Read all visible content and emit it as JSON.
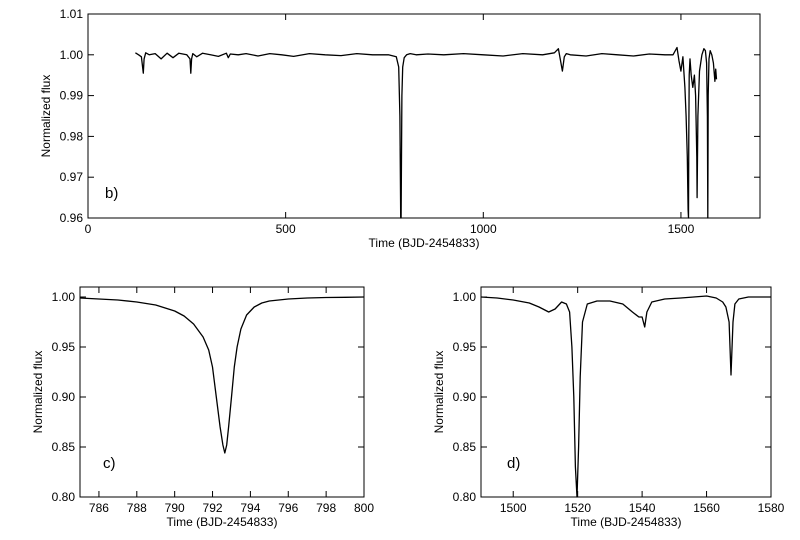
{
  "chart_data": [
    {
      "type": "line",
      "panel_label": "b)",
      "xlabel": "Time (BJD-2454833)",
      "ylabel": "Normalized flux",
      "xlim": [
        0,
        1700
      ],
      "ylim": [
        0.96,
        1.01
      ],
      "x_ticks": [
        0,
        500,
        1000,
        1500
      ],
      "y_ticks": [
        0.96,
        0.97,
        0.98,
        0.99,
        1.0,
        1.01
      ],
      "x_tick_labels": [
        "0",
        "500",
        "1000",
        "1500"
      ],
      "y_tick_labels": [
        "0.96",
        "0.97",
        "0.98",
        "0.99",
        "1.00",
        "1.01"
      ],
      "grid": false,
      "series": [
        {
          "x": [
            120,
            128,
            135,
            140,
            142,
            146,
            155,
            170,
            185,
            200,
            215,
            230,
            250,
            258,
            260,
            262,
            265,
            275,
            290,
            310,
            330,
            350,
            355,
            360,
            380,
            400,
            430,
            460,
            490,
            520,
            560,
            600,
            640,
            680,
            720,
            760,
            780,
            786,
            789,
            791,
            792,
            793,
            794,
            796,
            800,
            806,
            815,
            830,
            860,
            900,
            950,
            1000,
            1050,
            1100,
            1150,
            1180,
            1190,
            1200,
            1205,
            1210,
            1220,
            1260,
            1300,
            1340,
            1380,
            1420,
            1460,
            1480,
            1490,
            1495,
            1500,
            1505,
            1510,
            1513,
            1516,
            1518,
            1519,
            1520,
            1521,
            1523,
            1526,
            1530,
            1534,
            1537,
            1540,
            1541,
            1543,
            1547,
            1553,
            1558,
            1562,
            1565,
            1567,
            1568,
            1569,
            1571,
            1574,
            1578,
            1582,
            1586,
            1588,
            1590
          ],
          "y": [
            1.0005,
            1.0,
            0.9995,
            0.9955,
            0.999,
            1.0005,
            1.0,
            1.0003,
            0.999,
            1.0004,
            0.9993,
            1.0004,
            1.0,
            0.999,
            0.9955,
            0.999,
            1.0003,
            0.9995,
            1.0004,
            1.0,
            0.9996,
            1.0004,
            0.9993,
            1.0002,
            1.0,
            1.0003,
            0.9997,
            1.0003,
            1.0,
            0.9996,
            1.0003,
            1.0,
            0.9998,
            1.0003,
            1.0,
            1.0,
            0.9995,
            0.997,
            0.985,
            0.96,
            0.96,
            0.975,
            0.99,
            0.997,
            0.9993,
            1.0,
            1.0003,
            1.0,
            1.0002,
            1.0,
            1.0003,
            1.0,
            0.9997,
            1.0003,
            1.0,
            1.0005,
            1.0015,
            0.996,
            0.9995,
            1.0003,
            1.0,
            0.9997,
            1.0003,
            1.0,
            0.9997,
            1.0002,
            1.0,
            1.0,
            1.0018,
            0.9985,
            0.996,
            0.9995,
            0.992,
            0.985,
            0.975,
            0.962,
            0.96,
            0.98,
            0.995,
            0.999,
            0.995,
            0.992,
            0.995,
            0.99,
            0.975,
            0.965,
            0.985,
            0.996,
            1.0,
            1.0015,
            1.001,
            0.998,
            0.985,
            0.96,
            0.99,
            0.999,
            1.001,
            1.0,
            0.998,
            0.9935,
            0.9965,
            0.994
          ]
        }
      ]
    },
    {
      "type": "line",
      "panel_label": "c)",
      "xlabel": "Time (BJD-2454833)",
      "ylabel": "Normalized flux",
      "xlim": [
        785,
        800
      ],
      "ylim": [
        0.8,
        1.01
      ],
      "x_ticks": [
        786,
        788,
        790,
        792,
        794,
        796,
        798,
        800
      ],
      "y_ticks": [
        0.8,
        0.85,
        0.9,
        0.95,
        1.0
      ],
      "x_tick_labels": [
        "786",
        "788",
        "790",
        "792",
        "794",
        "796",
        "798",
        "800"
      ],
      "y_tick_labels": [
        "0.80",
        "0.85",
        "0.90",
        "0.95",
        "1.00"
      ],
      "grid": false,
      "series": [
        {
          "x": [
            785,
            786,
            787,
            788,
            789,
            790,
            790.5,
            791,
            791.5,
            791.8,
            792,
            792.2,
            792.4,
            792.55,
            792.65,
            792.75,
            792.85,
            793,
            793.15,
            793.3,
            793.5,
            793.8,
            794.2,
            794.6,
            795,
            796,
            797,
            798,
            799,
            800
          ],
          "y": [
            0.999,
            0.998,
            0.997,
            0.995,
            0.992,
            0.986,
            0.981,
            0.973,
            0.96,
            0.947,
            0.93,
            0.9,
            0.87,
            0.852,
            0.844,
            0.852,
            0.87,
            0.9,
            0.93,
            0.95,
            0.968,
            0.982,
            0.99,
            0.994,
            0.996,
            0.998,
            0.999,
            0.9995,
            0.9997,
            1.0
          ]
        }
      ]
    },
    {
      "type": "line",
      "panel_label": "d)",
      "xlabel": "Time (BJD-2454833)",
      "ylabel": "Normalized flux",
      "xlim": [
        1490,
        1580
      ],
      "ylim": [
        0.8,
        1.01
      ],
      "x_ticks": [
        1500,
        1520,
        1540,
        1560,
        1580
      ],
      "y_ticks": [
        0.8,
        0.85,
        0.9,
        0.95,
        1.0
      ],
      "x_tick_labels": [
        "1500",
        "1520",
        "1540",
        "1560",
        "1580"
      ],
      "y_tick_labels": [
        "0.80",
        "0.85",
        "0.90",
        "0.95",
        "1.00"
      ],
      "grid": false,
      "series": [
        {
          "x": [
            1490,
            1495,
            1500,
            1505,
            1508,
            1511,
            1513,
            1515,
            1516.5,
            1517.5,
            1518.2,
            1518.8,
            1519.3,
            1519.8,
            1520.3,
            1520.8,
            1521.5,
            1523,
            1526,
            1530,
            1534,
            1537,
            1539,
            1540,
            1540.8,
            1541.5,
            1543,
            1547,
            1552,
            1556,
            1560,
            1563,
            1565,
            1566,
            1567,
            1567.6,
            1568.2,
            1568.8,
            1570,
            1573,
            1576,
            1580
          ],
          "y": [
            1.0,
            0.999,
            0.997,
            0.994,
            0.99,
            0.985,
            0.988,
            0.995,
            0.993,
            0.985,
            0.95,
            0.9,
            0.83,
            0.8,
            0.85,
            0.92,
            0.975,
            0.993,
            0.996,
            0.996,
            0.993,
            0.985,
            0.98,
            0.98,
            0.97,
            0.985,
            0.995,
            0.998,
            0.999,
            1.0,
            1.001,
            0.999,
            0.995,
            0.99,
            0.975,
            0.922,
            0.975,
            0.993,
            0.998,
            1.0,
            1.0,
            1.0
          ]
        }
      ]
    }
  ]
}
